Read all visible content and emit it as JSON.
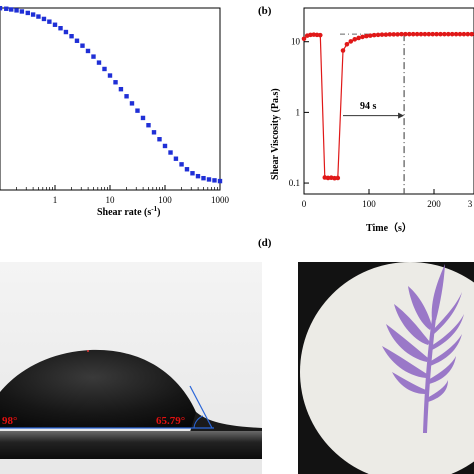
{
  "panels": {
    "b_label": "(b)",
    "d_label": "(d)"
  },
  "chart_data": [
    {
      "type": "scatter",
      "xscale": "log",
      "xlim": [
        0.1,
        1000
      ],
      "xlabel_main": "Shear rate (s",
      "xlabel_sup": "-1",
      "xlabel_tail": ")",
      "xticks": [
        "1",
        "10",
        "100",
        "1000"
      ],
      "grid": false,
      "series": [
        {
          "color": "#1f2fd6",
          "marker": "square",
          "x": [
            0.1,
            0.13,
            0.16,
            0.2,
            0.25,
            0.32,
            0.4,
            0.5,
            0.63,
            0.79,
            1.0,
            1.26,
            1.58,
            2.0,
            2.51,
            3.16,
            3.98,
            5.01,
            6.31,
            7.94,
            10,
            12.6,
            15.8,
            20,
            25.1,
            31.6,
            39.8,
            50.1,
            63.1,
            79.4,
            100,
            126,
            158,
            200,
            251,
            316,
            398,
            501,
            631,
            794,
            1000
          ],
          "y": [
            0.955,
            0.952,
            0.948,
            0.943,
            0.937,
            0.929,
            0.92,
            0.909,
            0.896,
            0.881,
            0.864,
            0.845,
            0.824,
            0.801,
            0.776,
            0.749,
            0.72,
            0.689,
            0.656,
            0.621,
            0.585,
            0.548,
            0.51,
            0.471,
            0.432,
            0.392,
            0.352,
            0.312,
            0.273,
            0.235,
            0.198,
            0.162,
            0.128,
            0.097,
            0.07,
            0.048,
            0.032,
            0.021,
            0.014,
            0.009,
            0.005
          ]
        }
      ]
    },
    {
      "type": "line",
      "yscale": "log",
      "xlim": [
        0,
        300
      ],
      "ylim": [
        0.07,
        30
      ],
      "xlabel": "Time（s）",
      "ylabel": "Shear Viscosity (Pa.s)",
      "xticks": [
        "0",
        "100",
        "200",
        "3"
      ],
      "yticks": [
        "10",
        "1",
        "0.1"
      ],
      "annotation": "94 s",
      "grid": false,
      "series": [
        {
          "color": "#e01818",
          "marker": "circle",
          "x": [
            0,
            5,
            10,
            15,
            20,
            25,
            32,
            37,
            42,
            47,
            52,
            60,
            66,
            72,
            78,
            84,
            90,
            96,
            102,
            108,
            114,
            120,
            126,
            132,
            138,
            144,
            150,
            156,
            162,
            168,
            174,
            180,
            186,
            192,
            198,
            204,
            210,
            216,
            222,
            228,
            234,
            240,
            246,
            252,
            258,
            264,
            270,
            276,
            282,
            288,
            294,
            300
          ],
          "y": [
            11.0,
            12.2,
            12.5,
            12.6,
            12.5,
            12.4,
            0.12,
            0.118,
            0.119,
            0.117,
            0.118,
            7.5,
            9.2,
            10.1,
            10.8,
            11.3,
            11.7,
            12.0,
            12.2,
            12.4,
            12.5,
            12.6,
            12.6,
            12.7,
            12.7,
            12.7,
            12.8,
            12.8,
            12.8,
            12.8,
            12.8,
            12.8,
            12.8,
            12.8,
            12.8,
            12.8,
            12.8,
            12.8,
            12.8,
            12.8,
            12.8,
            12.8,
            12.8,
            12.8,
            12.8,
            12.8,
            12.8,
            12.8,
            12.8,
            12.8,
            12.8,
            12.8
          ]
        }
      ]
    }
  ],
  "contact_angle": {
    "left_angle": "98°",
    "right_angle": "65.79°"
  },
  "colors": {
    "blue_series": "#1f2fd6",
    "red_series": "#e01818",
    "angle_text": "#e01010",
    "baseline": "#2a66d8",
    "leaf": "#9a78c8"
  }
}
